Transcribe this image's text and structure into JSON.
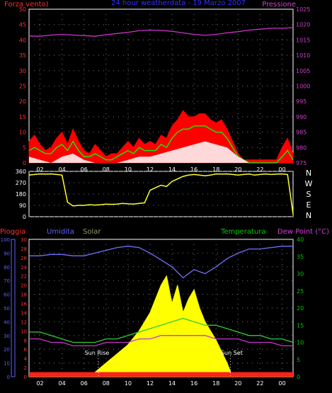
{
  "colors": {
    "background": "#000000",
    "axis_red": "#ff3030",
    "axis_magenta": "#d040d0",
    "axis_blue": "#6060ff",
    "axis_green": "#00cc00",
    "axis_white": "#ffffff",
    "title_blue": "#3030ff",
    "wind": "#ff0000",
    "wind_avg": "#00ff00",
    "wind_min": "#ffffff",
    "pressure": "#cc33cc",
    "direction": "#ffff33",
    "humidity": "#7070ff",
    "solar": "#ffff00",
    "temperature": "#33cc33",
    "dew_point": "#cc33cc",
    "rain": "#ff2020"
  },
  "chart_data": [
    {
      "type": "line",
      "title": "24 hour weatherdata - 19 Marzo 2007",
      "left_label": "Forza vento)",
      "right_label": "Pressione",
      "x_ticks": [
        "02",
        "04",
        "06",
        "08",
        "10",
        "12",
        "14",
        "16",
        "18",
        "20",
        "22",
        "00"
      ],
      "y_left_ticks": [
        "0",
        "5",
        "10",
        "15",
        "20",
        "25",
        "30",
        "35",
        "40",
        "45",
        "50"
      ],
      "y_right_ticks": [
        "975",
        "980",
        "985",
        "990",
        "995",
        "1000",
        "1005",
        "1010",
        "1015",
        "1020",
        "1025"
      ],
      "ylim_left": [
        0,
        50
      ],
      "ylim_right": [
        975,
        1025
      ],
      "x_range_hours": [
        0,
        24
      ],
      "series": [
        {
          "axis": "right",
          "x": [
            0,
            1,
            2,
            3,
            4,
            5,
            6,
            7,
            8,
            9,
            10,
            11,
            12,
            13,
            14,
            15,
            16,
            17,
            18,
            19,
            20,
            21,
            22,
            23,
            24
          ],
          "values": [
            1016.3,
            1016.2,
            1016.6,
            1016.8,
            1016.6,
            1016.4,
            1016.2,
            1016.7,
            1017.1,
            1017.5,
            1018.0,
            1018.2,
            1018.1,
            1017.8,
            1017.3,
            1016.8,
            1016.5,
            1016.8,
            1017.3,
            1017.7,
            1018.2,
            1018.5,
            1018.8,
            1018.8,
            1019.0
          ]
        },
        {
          "axis": "left",
          "x": [
            0,
            0.5,
            1,
            1.5,
            2,
            2.5,
            3,
            3.5,
            4,
            4.5,
            5,
            5.5,
            6,
            6.5,
            7,
            7.5,
            8,
            8.5,
            9,
            9.5,
            10,
            10.5,
            11,
            11.5,
            12,
            12.5,
            13,
            13.5,
            14,
            14.5,
            15,
            15.5,
            16,
            16.5,
            17,
            17.5,
            18,
            18.5,
            19,
            19.5,
            20,
            20.5,
            21,
            21.5,
            22,
            22.5,
            23,
            23.5,
            24
          ],
          "values": [
            7,
            9,
            6,
            4,
            5,
            8,
            10,
            6,
            11,
            7,
            4,
            3,
            6,
            4,
            2,
            3,
            3,
            5,
            7,
            5,
            8,
            6,
            7,
            6,
            9,
            8,
            12,
            14,
            17,
            15,
            15,
            16,
            16,
            14,
            13,
            14,
            11,
            7,
            3,
            1,
            1,
            1,
            1,
            1,
            1,
            1,
            5,
            8,
            3
          ]
        },
        {
          "axis": "left",
          "x": [
            0,
            0.5,
            1,
            1.5,
            2,
            2.5,
            3,
            3.5,
            4,
            4.5,
            5,
            5.5,
            6,
            6.5,
            7,
            7.5,
            8,
            8.5,
            9,
            9.5,
            10,
            10.5,
            11,
            11.5,
            12,
            12.5,
            13,
            13.5,
            14,
            14.5,
            15,
            15.5,
            16,
            16.5,
            17,
            17.5,
            18,
            18.5,
            19,
            19.5,
            20,
            20.5,
            21,
            21.5,
            22,
            22.5,
            23,
            23.5,
            24
          ],
          "values": [
            4,
            5,
            4,
            3,
            3,
            5,
            6,
            4,
            7,
            4,
            2,
            2,
            3,
            2,
            1,
            1,
            2,
            3,
            4,
            3,
            5,
            4,
            4,
            4,
            6,
            5,
            8,
            10,
            11,
            11,
            12,
            12,
            12,
            11,
            10,
            10,
            8,
            5,
            2,
            1,
            0,
            0,
            0,
            0,
            0,
            0,
            2,
            4,
            1
          ]
        },
        {
          "axis": "left",
          "x": [
            0,
            1,
            2,
            3,
            4,
            5,
            6,
            7,
            8,
            9,
            10,
            11,
            12,
            13,
            14,
            15,
            16,
            17,
            18,
            19,
            20,
            21,
            22,
            23,
            24
          ],
          "values": [
            2,
            1,
            0,
            2,
            3,
            1,
            0,
            0,
            0,
            1,
            2,
            2,
            3,
            4,
            5,
            6,
            7,
            6,
            5,
            2,
            0,
            0,
            0,
            0,
            0
          ]
        }
      ]
    },
    {
      "type": "line",
      "y_ticks": [
        "360",
        "270",
        "180",
        "90",
        "0"
      ],
      "ylim": [
        0,
        360
      ],
      "right_labels": [
        "N",
        "W",
        "S",
        "E",
        "N"
      ],
      "x_range_hours": [
        0,
        24
      ],
      "series": [
        {
          "x": [
            0,
            0.5,
            1,
            1.5,
            2,
            2.5,
            3,
            3.5,
            4,
            4.5,
            5,
            5.5,
            6,
            6.5,
            7,
            7.5,
            8,
            8.5,
            9,
            9.5,
            10,
            10.5,
            11,
            11.5,
            12,
            12.5,
            13,
            13.5,
            14,
            14.5,
            15,
            15.5,
            16,
            16.5,
            17,
            17.5,
            18,
            18.5,
            19,
            19.5,
            20,
            20.5,
            21,
            21.5,
            22,
            22.5,
            23,
            23.5,
            24
          ],
          "values": [
            330,
            335,
            340,
            338,
            340,
            335,
            330,
            115,
            85,
            90,
            90,
            95,
            92,
            95,
            100,
            98,
            100,
            105,
            102,
            100,
            105,
            110,
            210,
            230,
            250,
            240,
            280,
            300,
            320,
            330,
            335,
            330,
            325,
            330,
            340,
            338,
            340,
            335,
            330,
            335,
            340,
            330,
            335,
            340,
            335,
            338,
            340,
            335,
            20
          ]
        }
      ]
    },
    {
      "type": "line",
      "title_labels": {
        "rain": "Pioggia",
        "humidity": "Umidita",
        "solar": "Solar",
        "temperature": "Temperatura",
        "dew_point": "Dew Point (°C)"
      },
      "annotations": [
        "Sun Rise",
        "Sun Set"
      ],
      "x_ticks": [
        "02",
        "04",
        "06",
        "08",
        "10",
        "12",
        "14",
        "16",
        "18",
        "20",
        "22",
        "00"
      ],
      "y_humidity_ticks": [
        "0",
        "10",
        "20",
        "30",
        "40",
        "50",
        "60",
        "70",
        "80",
        "90",
        "100"
      ],
      "y_rain_ticks": [
        "0",
        "2",
        "4",
        "6",
        "8",
        "10",
        "12",
        "14",
        "16",
        "18",
        "20",
        "22",
        "24",
        "26",
        "28",
        "30"
      ],
      "y_temp_ticks": [
        "0",
        "5",
        "10",
        "15",
        "20",
        "25",
        "30",
        "35",
        "40"
      ],
      "ylim_humidity": [
        0,
        100
      ],
      "ylim_rain": [
        0,
        30
      ],
      "ylim_temperature": [
        0,
        40
      ],
      "x_range_hours": [
        0,
        24
      ],
      "series": [
        {
          "name": "Umidita",
          "x": [
            0,
            1,
            2,
            3,
            4,
            5,
            6,
            7,
            8,
            9,
            10,
            11,
            12,
            13,
            14,
            15,
            16,
            17,
            18,
            19,
            20,
            21,
            22,
            23,
            24
          ],
          "values": [
            88,
            88,
            89,
            89,
            88,
            88,
            90,
            92,
            94,
            95,
            94,
            90,
            85,
            80,
            72,
            78,
            75,
            80,
            86,
            90,
            93,
            93,
            94,
            95,
            95
          ]
        },
        {
          "name": "Temperatura",
          "x": [
            0,
            1,
            2,
            3,
            4,
            5,
            6,
            7,
            8,
            9,
            10,
            11,
            12,
            13,
            14,
            15,
            16,
            17,
            18,
            19,
            20,
            21,
            22,
            23,
            24
          ],
          "values": [
            13,
            13,
            12,
            11,
            10,
            10,
            10,
            11,
            11,
            12,
            13,
            14,
            15,
            16,
            17,
            16,
            15,
            15,
            14,
            13,
            12,
            12,
            11,
            11,
            10
          ]
        },
        {
          "name": "Dew Point (°C)",
          "x": [
            0,
            1,
            2,
            3,
            4,
            5,
            6,
            7,
            8,
            9,
            10,
            11,
            12,
            13,
            14,
            15,
            16,
            17,
            18,
            19,
            20,
            21,
            22,
            23,
            24
          ],
          "values": [
            11,
            11,
            10,
            10,
            9,
            9,
            9,
            10,
            10,
            10,
            11,
            11,
            12,
            12,
            12,
            12,
            12,
            11,
            11,
            11,
            10,
            10,
            10,
            9,
            9
          ]
        },
        {
          "name": "Solar",
          "x": [
            0,
            5.5,
            6,
            7,
            8,
            9,
            10,
            11,
            11.5,
            12,
            12.5,
            13,
            13.5,
            14,
            14.5,
            15,
            15.5,
            16,
            17,
            18,
            18.5,
            24
          ],
          "values": [
            0,
            0,
            1,
            3,
            5,
            7,
            10,
            14,
            17,
            20,
            22,
            16,
            20,
            14,
            17,
            19,
            15,
            12,
            8,
            3,
            0,
            0
          ]
        },
        {
          "name": "Pioggia",
          "x": [
            0,
            24
          ],
          "values": [
            1,
            1
          ]
        }
      ]
    }
  ]
}
